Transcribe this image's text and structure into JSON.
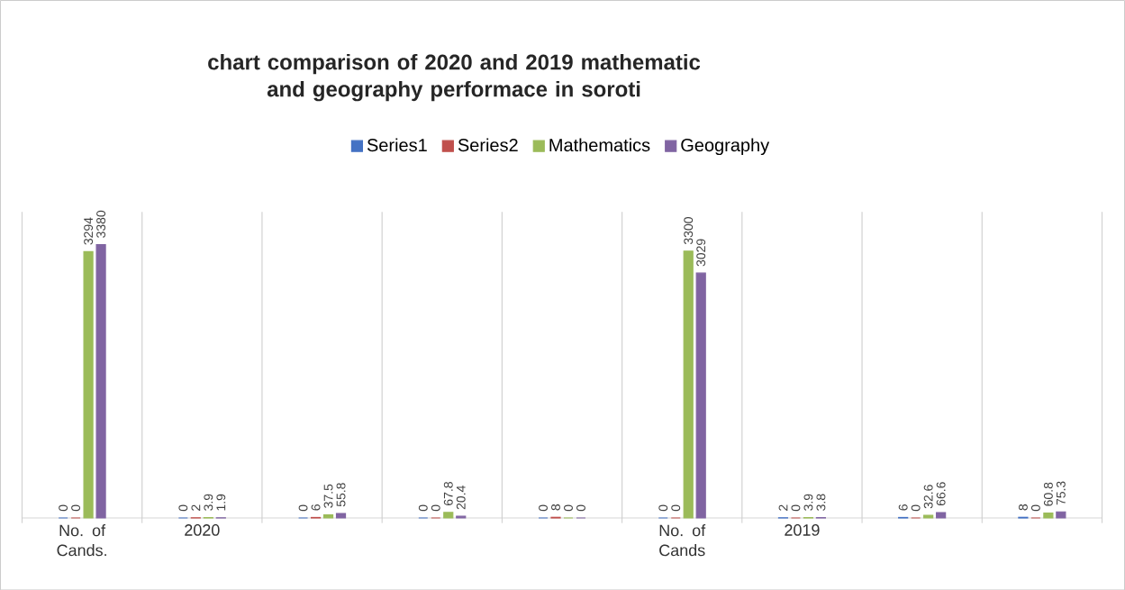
{
  "chart_data": {
    "type": "bar",
    "title": "chart comparison of 2020 and 2019 mathematic and geography performace in soroti",
    "categories": [
      "No. of Cands.",
      "2020",
      null,
      null,
      null,
      "No. of Cands",
      "2019",
      null,
      null
    ],
    "series": [
      {
        "name": "Series1",
        "color": "#4472c4",
        "values": [
          0,
          0,
          0,
          0,
          0,
          0,
          2,
          6,
          8
        ]
      },
      {
        "name": "Series2",
        "color": "#c0504d",
        "values": [
          0,
          2,
          6,
          0,
          8,
          0,
          0,
          0,
          0
        ]
      },
      {
        "name": "Mathematics",
        "color": "#9bbb59",
        "values": [
          3294,
          3.9,
          37.5,
          67.8,
          0,
          3300,
          3.9,
          32.6,
          60.8
        ]
      },
      {
        "name": "Geography",
        "color": "#8064a2",
        "values": [
          3380,
          1.9,
          55.8,
          20.4,
          0,
          3029,
          3.8,
          66.6,
          75.3
        ]
      }
    ],
    "data_labels": true,
    "grid": "x",
    "legend": "top"
  }
}
